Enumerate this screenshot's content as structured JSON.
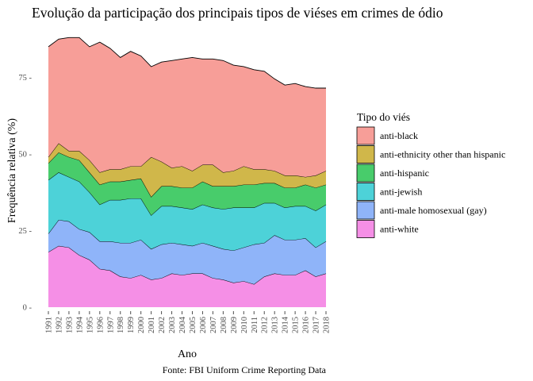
{
  "chart_data": {
    "type": "area",
    "stacked": true,
    "title": "Evolução da participação dos principais tipos de viéses em crimes de ódio",
    "xlabel": "Ano",
    "ylabel": "Frequência relativa (%)",
    "caption": "Fonte: FBI Uniform Crime Reporting Data",
    "legend_title": "Tipo do viés",
    "legend_position": "right",
    "grid": false,
    "ylim": [
      0,
      90
    ],
    "yticks": [
      0,
      25,
      50,
      75
    ],
    "ytick_labels": [
      "0 -",
      "25 -",
      "50 -",
      "75 -"
    ],
    "x": [
      1991,
      1992,
      1993,
      1994,
      1995,
      1996,
      1997,
      1998,
      1999,
      2000,
      2001,
      2002,
      2003,
      2004,
      2005,
      2006,
      2007,
      2008,
      2009,
      2010,
      2011,
      2012,
      2013,
      2014,
      2015,
      2016,
      2017,
      2018
    ],
    "xtick_labels": [
      "1991",
      "1992",
      "1993",
      "1994",
      "1995",
      "1996",
      "1997",
      "1998",
      "1999",
      "2000",
      "2001",
      "2002",
      "2003",
      "2004",
      "2005",
      "2006",
      "2007",
      "2008",
      "2009",
      "2010",
      "2011",
      "2012",
      "2013",
      "2014",
      "2015",
      "2016",
      "2017",
      "2018"
    ],
    "series": [
      {
        "name": "anti-white",
        "color": "#F58FE6",
        "values": [
          18.0,
          20.0,
          19.5,
          17.0,
          15.5,
          12.5,
          12.0,
          10.0,
          9.5,
          10.5,
          9.0,
          9.5,
          11.0,
          10.5,
          11.0,
          11.0,
          9.5,
          9.0,
          8.0,
          8.5,
          7.5,
          10.0,
          11.0,
          10.5,
          10.5,
          12.0,
          10.0,
          11.0
        ]
      },
      {
        "name": "anti-male homosexual (gay)",
        "color": "#8FB4F9",
        "values": [
          6.0,
          8.5,
          8.5,
          8.5,
          9.0,
          9.0,
          9.5,
          11.0,
          11.5,
          11.5,
          10.0,
          11.0,
          10.0,
          10.0,
          9.0,
          10.0,
          10.5,
          10.0,
          10.5,
          11.0,
          13.0,
          11.0,
          12.5,
          11.5,
          11.5,
          10.5,
          9.5,
          10.5
        ]
      },
      {
        "name": "anti-jewish",
        "color": "#4DD2D8",
        "values": [
          17.5,
          15.5,
          14.5,
          15.5,
          13.0,
          12.0,
          13.5,
          14.0,
          14.5,
          13.5,
          11.0,
          12.5,
          12.0,
          12.0,
          12.0,
          12.5,
          12.5,
          13.0,
          14.0,
          13.0,
          12.0,
          13.0,
          10.5,
          10.5,
          11.0,
          10.5,
          12.0,
          12.0
        ]
      },
      {
        "name": "anti-hispanic",
        "color": "#48CC6B",
        "values": [
          5.5,
          6.5,
          6.5,
          7.0,
          6.5,
          6.5,
          6.0,
          6.0,
          6.0,
          6.5,
          6.0,
          6.5,
          6.5,
          6.5,
          7.0,
          7.5,
          7.0,
          7.5,
          7.0,
          7.5,
          7.5,
          6.5,
          6.5,
          6.5,
          6.0,
          7.0,
          7.5,
          6.5
        ]
      },
      {
        "name": "anti-ethnicity other than hispanic",
        "color": "#D0B74A",
        "values": [
          2.0,
          3.0,
          2.0,
          3.0,
          4.0,
          4.0,
          4.0,
          4.0,
          4.5,
          4.0,
          13.0,
          8.0,
          6.0,
          7.0,
          5.5,
          5.5,
          7.0,
          4.5,
          5.0,
          6.0,
          5.0,
          4.5,
          4.0,
          4.0,
          4.0,
          2.5,
          4.0,
          4.5
        ]
      },
      {
        "name": "anti-black",
        "color": "#F79E98",
        "values": [
          36.0,
          34.0,
          37.0,
          37.0,
          37.0,
          42.5,
          39.5,
          36.5,
          37.5,
          36.0,
          29.5,
          32.5,
          35.0,
          35.0,
          37.0,
          34.5,
          34.5,
          36.5,
          34.5,
          32.5,
          32.5,
          32.0,
          30.0,
          29.5,
          30.0,
          29.5,
          28.5,
          27.0
        ]
      }
    ]
  }
}
